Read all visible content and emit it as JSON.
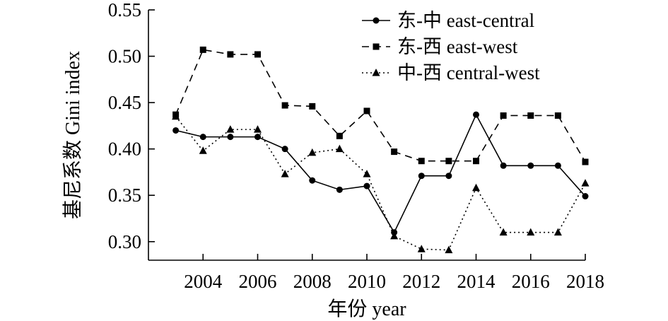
{
  "chart_data": {
    "type": "line",
    "xlabel": "年份 year",
    "ylabel": "基尼系数 Gini index",
    "xlim": [
      2002,
      2018
    ],
    "ylim": [
      0.28,
      0.55
    ],
    "x_ticks": [
      2004,
      2006,
      2008,
      2010,
      2012,
      2014,
      2016,
      2018
    ],
    "x_tick_labels": [
      "2004",
      "2006",
      "2008",
      "2010",
      "2012",
      "2014",
      "2016",
      "2018"
    ],
    "y_ticks": [
      0.3,
      0.35,
      0.4,
      0.45,
      0.5,
      0.55
    ],
    "y_tick_labels": [
      "0.30",
      "0.35",
      "0.40",
      "0.45",
      "0.50",
      "0.55"
    ],
    "grid": false,
    "legend_position": "top-right",
    "x": [
      2003,
      2004,
      2005,
      2006,
      2007,
      2008,
      2009,
      2010,
      2011,
      2012,
      2013,
      2014,
      2015,
      2016,
      2017,
      2018
    ],
    "series": [
      {
        "name": "东-中 east-central",
        "line_style": "solid",
        "marker": "circle",
        "color": "#000000",
        "values": [
          0.42,
          0.413,
          0.413,
          0.413,
          0.4,
          0.366,
          0.356,
          0.36,
          0.31,
          0.371,
          0.371,
          0.437,
          0.382,
          0.382,
          0.382,
          0.349
        ]
      },
      {
        "name": "东-西 east-west",
        "line_style": "dashed",
        "marker": "square",
        "color": "#000000",
        "values": [
          0.437,
          0.507,
          0.502,
          0.502,
          0.447,
          0.446,
          0.414,
          0.441,
          0.397,
          0.387,
          0.387,
          0.387,
          0.436,
          0.436,
          0.436,
          0.386
        ]
      },
      {
        "name": "中-西 central-west",
        "line_style": "dotted",
        "marker": "triangle",
        "color": "#000000",
        "values": [
          0.435,
          0.398,
          0.421,
          0.421,
          0.373,
          0.396,
          0.4,
          0.373,
          0.306,
          0.292,
          0.291,
          0.358,
          0.31,
          0.31,
          0.31,
          0.363
        ]
      }
    ]
  }
}
